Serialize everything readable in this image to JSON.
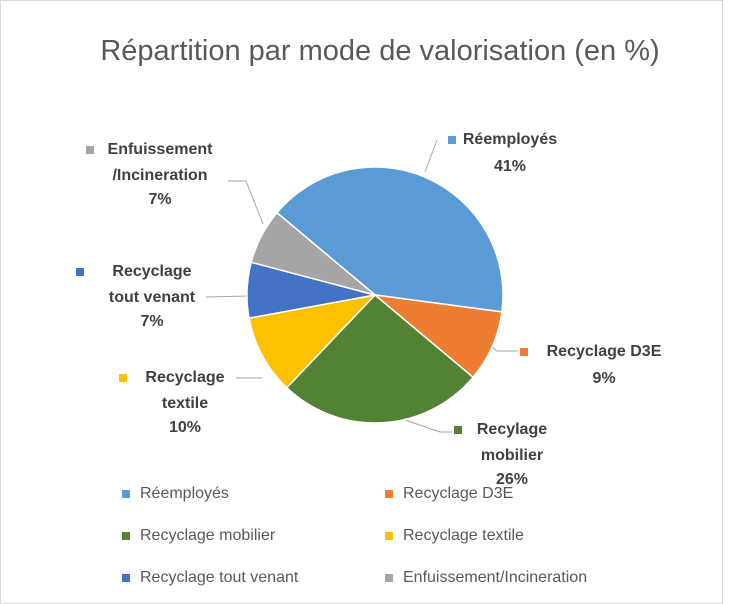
{
  "chart_data": {
    "type": "pie",
    "title": "Répartition par mode de valorisation (en %)",
    "categories": [
      "Réemployés",
      "Recyclage D3E",
      "Recyclage mobilier",
      "Recyclage textile",
      "Recyclage tout venant",
      "Enfuissement/Incineration"
    ],
    "label_lines": [
      [
        "Réemployés"
      ],
      [
        "Recyclage D3E"
      ],
      [
        "Recylage",
        "mobilier"
      ],
      [
        "Recyclage",
        "textile"
      ],
      [
        "Recyclage",
        "tout venant"
      ],
      [
        "Enfuissement",
        "/Incineration"
      ]
    ],
    "values": [
      41,
      9,
      26,
      10,
      7,
      7
    ],
    "value_labels": [
      "41%",
      "9%",
      "26%",
      "10%",
      "7%",
      "7%"
    ],
    "colors": [
      "#5b9bd5",
      "#ed7d31",
      "#548235",
      "#ffc000",
      "#4472c4",
      "#a5a5a5"
    ],
    "legend": "bottom"
  }
}
